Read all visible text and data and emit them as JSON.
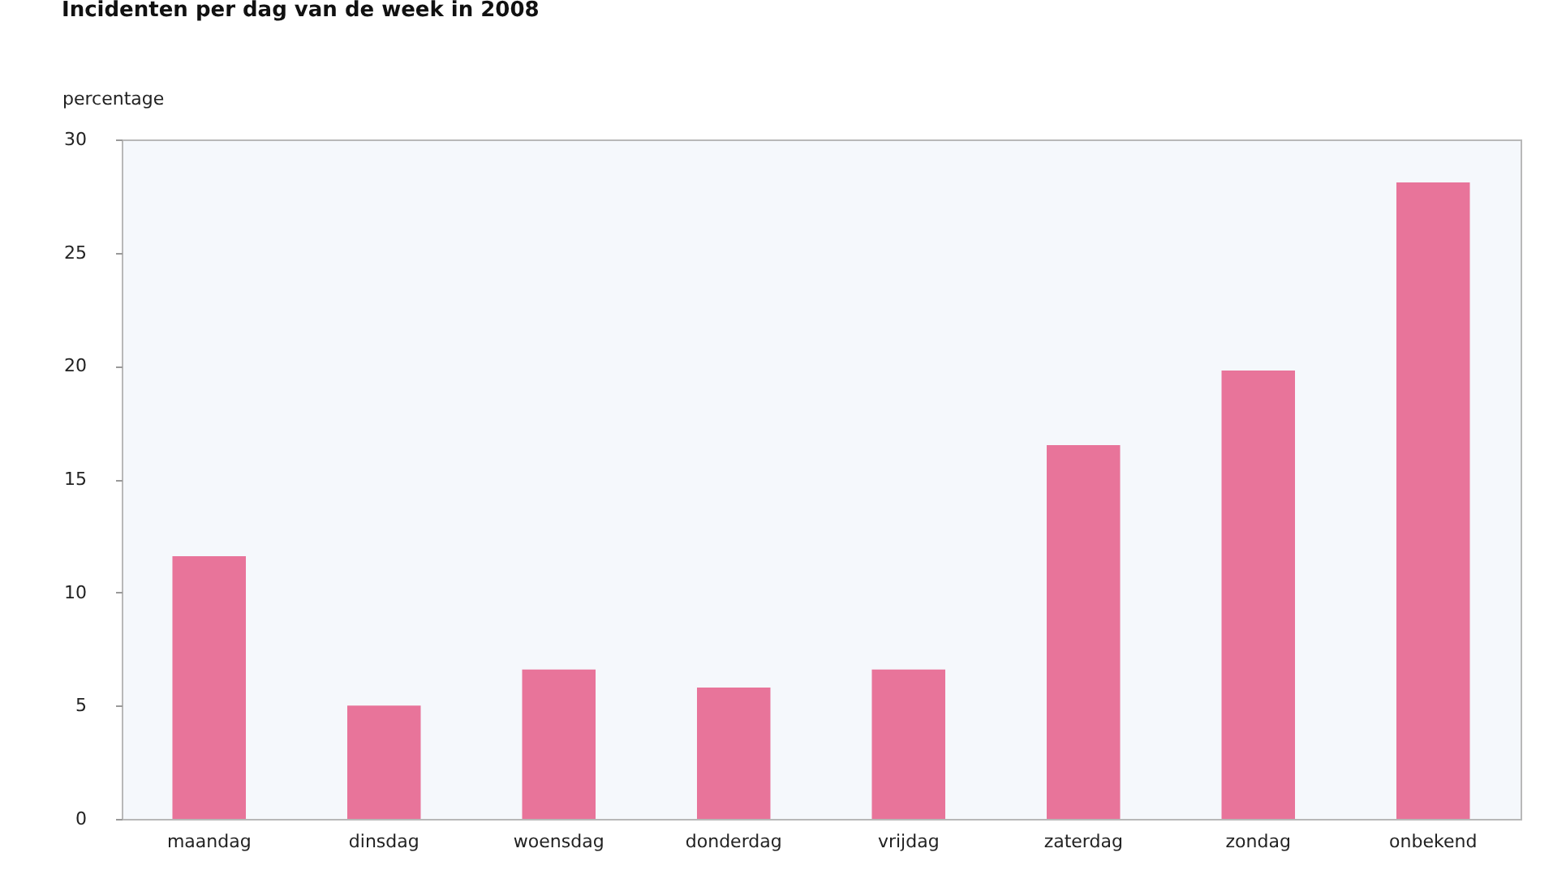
{
  "chart_data": {
    "type": "bar",
    "title": "Incidenten per dag van de week in 2008",
    "ylabel": "percentage",
    "categories": [
      "maandag",
      "dinsdag",
      "woensdag",
      "donderdag",
      "vrijdag",
      "zaterdag",
      "zondag",
      "onbekend"
    ],
    "values": [
      11.6,
      5.0,
      6.6,
      5.8,
      6.6,
      16.5,
      19.8,
      28.1
    ],
    "color": "#e8749a",
    "ylim": [
      0,
      30
    ],
    "yticks": [
      0,
      5,
      10,
      15,
      20,
      25,
      30
    ],
    "grid": false
  }
}
